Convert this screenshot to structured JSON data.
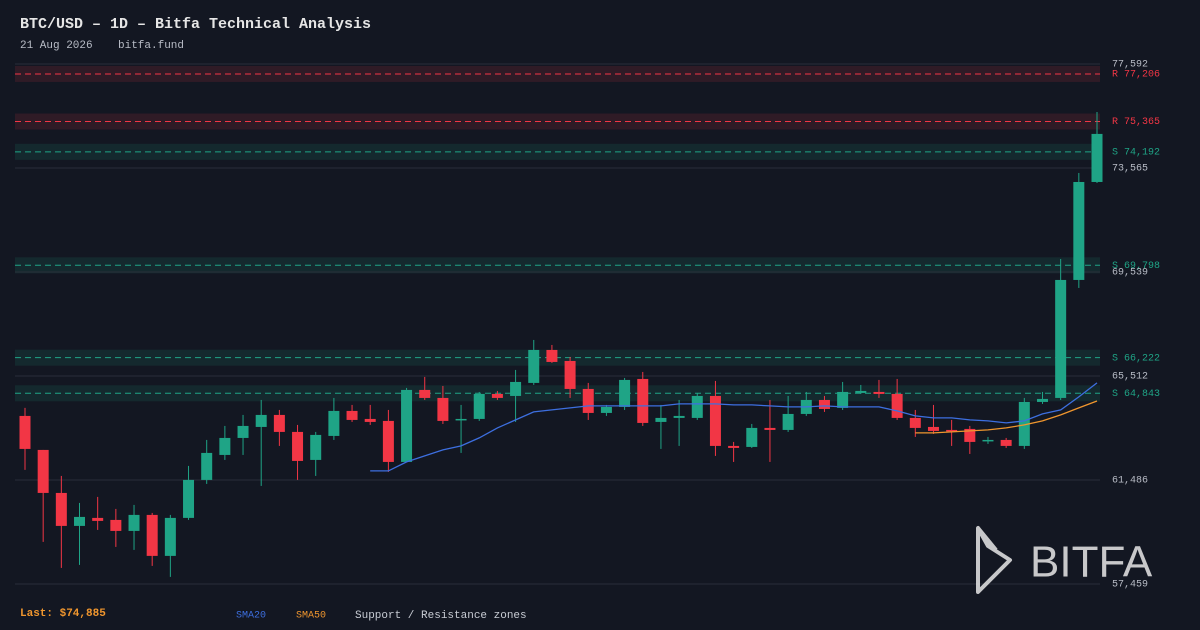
{
  "chart_data": {
    "type": "candlestick",
    "title": "BTC/USD  –  1D  –  Bitfa Technical Analysis",
    "date": "21 Aug 2026",
    "source": "bitfa.fund",
    "watermark": "BITFA",
    "last_label": "Last: $74,885",
    "zones_legend": "Support / Resistance zones",
    "up_color": "#1fa486",
    "down_color": "#f23645",
    "grid": true,
    "ylim": [
      57459,
      77592
    ],
    "yticks": [
      {
        "value": 57459,
        "label": "57,459"
      },
      {
        "value": 61486,
        "label": "61,486"
      },
      {
        "value": 65512,
        "label": "65,512"
      },
      {
        "value": 69539,
        "label": "69,539"
      },
      {
        "value": 73565,
        "label": "73,565"
      },
      {
        "value": 77592,
        "label": "77,592"
      }
    ],
    "open": [
      63966,
      62650,
      60985,
      59708,
      60018,
      59940,
      59514,
      60134,
      58547,
      60018,
      61489,
      62456,
      63114,
      63540,
      64005,
      63347,
      62263,
      63192,
      64160,
      63850,
      63773,
      62185,
      64973,
      64663,
      63811,
      63850,
      64818,
      64740,
      65244,
      66521,
      66095,
      65011,
      64082,
      64314,
      65398,
      63734,
      63889,
      63889,
      64740,
      62805,
      62766,
      63502,
      63424,
      64043,
      64585,
      64276,
      64856,
      64895,
      64818,
      63889,
      63540,
      63424,
      63463,
      62998,
      63037,
      62805,
      64508,
      64663,
      69231,
      73024
    ],
    "high": [
      64276,
      62650,
      61643,
      60598,
      60831,
      60366,
      60521,
      60211,
      60134,
      62031,
      63037,
      63579,
      64005,
      64585,
      64198,
      63618,
      63347,
      64663,
      64392,
      64392,
      64198,
      65050,
      65476,
      65127,
      64392,
      64895,
      64934,
      65747,
      66908,
      66714,
      66250,
      65244,
      64392,
      65437,
      65669,
      64392,
      64585,
      64856,
      65321,
      62960,
      63656,
      64585,
      64740,
      64895,
      64740,
      65282,
      65166,
      65360,
      65398,
      64198,
      64392,
      63811,
      63579,
      63153,
      63114,
      64663,
      64895,
      70044,
      73373,
      75734
    ],
    "low": [
      61876,
      59089,
      58082,
      58198,
      59553,
      58895,
      58779,
      58160,
      57734,
      59940,
      61334,
      62263,
      62456,
      61256,
      62805,
      61489,
      61643,
      63037,
      63734,
      63618,
      61798,
      62185,
      64585,
      63656,
      62534,
      63773,
      64585,
      63734,
      65166,
      66018,
      64663,
      63811,
      63966,
      64198,
      63579,
      62689,
      62805,
      63811,
      62418,
      62185,
      62727,
      62185,
      63347,
      63966,
      64121,
      64198,
      64818,
      64663,
      63811,
      63153,
      63269,
      62805,
      62495,
      62882,
      62727,
      62689,
      64431,
      64585,
      68921,
      72986
    ],
    "close": [
      62689,
      60985,
      59708,
      60056,
      59902,
      59514,
      60134,
      58547,
      60018,
      61489,
      62534,
      63114,
      63579,
      64005,
      63347,
      62224,
      63231,
      64160,
      63811,
      63734,
      62185,
      64973,
      64663,
      63773,
      63850,
      64818,
      64663,
      65282,
      66521,
      66056,
      65011,
      64082,
      64314,
      65360,
      63695,
      63889,
      63966,
      64740,
      62805,
      62727,
      63502,
      63424,
      64043,
      64585,
      64237,
      64895,
      64934,
      64818,
      63889,
      63502,
      63385,
      63410,
      62960,
      63037,
      62805,
      64508,
      64624,
      69231,
      73024,
      74885
    ],
    "series": [
      {
        "name": "SMA20",
        "color": "#3d6fe0",
        "values": [
          null,
          null,
          null,
          null,
          null,
          null,
          null,
          null,
          null,
          null,
          null,
          null,
          null,
          null,
          null,
          null,
          null,
          null,
          null,
          61837,
          61837,
          62185,
          62418,
          62650,
          62805,
          63114,
          63502,
          63811,
          64121,
          64198,
          64276,
          64353,
          64353,
          64353,
          64353,
          64353,
          64431,
          64431,
          64431,
          64392,
          64392,
          64353,
          64314,
          64314,
          64353,
          64314,
          64314,
          64314,
          64160,
          63966,
          63889,
          63889,
          63811,
          63773,
          63695,
          63773,
          64043,
          64198,
          64702,
          65244
        ]
      },
      {
        "name": "SMA50",
        "color": "#f0962e",
        "values": [
          null,
          null,
          null,
          null,
          null,
          null,
          null,
          null,
          null,
          null,
          null,
          null,
          null,
          null,
          null,
          null,
          null,
          null,
          null,
          null,
          null,
          null,
          null,
          null,
          null,
          null,
          null,
          null,
          null,
          null,
          null,
          null,
          null,
          null,
          null,
          null,
          null,
          null,
          null,
          null,
          null,
          null,
          null,
          null,
          null,
          null,
          null,
          null,
          null,
          63308,
          63308,
          63347,
          63385,
          63424,
          63502,
          63618,
          63773,
          64005,
          64276,
          64546
        ]
      }
    ],
    "zones": [
      {
        "label": "R 77,206",
        "value": 77206,
        "color": "#f23645"
      },
      {
        "label": "R 75,365",
        "value": 75365,
        "color": "#f23645"
      },
      {
        "label": "S 74,192",
        "value": 74192,
        "color": "#1fa486"
      },
      {
        "label": "S 69,798",
        "value": 69798,
        "color": "#1fa486"
      },
      {
        "label": "S 66,222",
        "value": 66222,
        "color": "#1fa486"
      },
      {
        "label": "S 64,843",
        "value": 64843,
        "color": "#1fa486"
      }
    ]
  }
}
